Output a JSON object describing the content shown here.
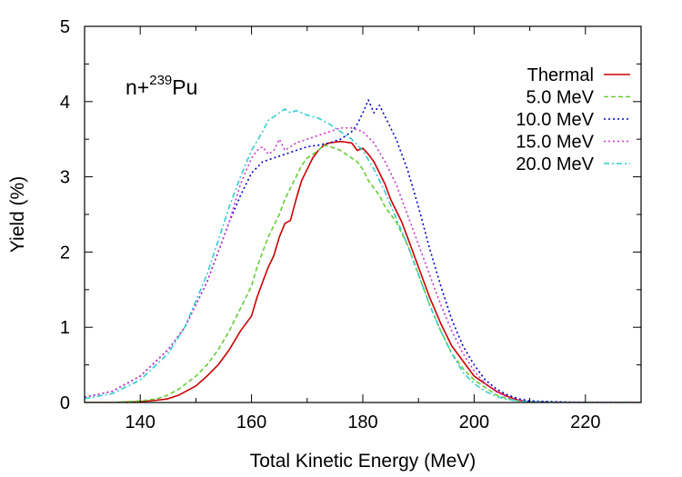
{
  "chart_data": {
    "type": "line",
    "title": "",
    "annotation": {
      "prefix": "n+",
      "superscript": "239",
      "element": "Pu"
    },
    "xlabel": "Total Kinetic Energy (MeV)",
    "ylabel": "Yield (%)",
    "xlim": [
      130,
      230
    ],
    "ylim": [
      0,
      5
    ],
    "xticks": [
      140,
      160,
      180,
      200,
      220
    ],
    "yticks": [
      0,
      1,
      2,
      3,
      4,
      5
    ],
    "grid": false,
    "legend_position": "top-right",
    "series": [
      {
        "name": "Thermal",
        "color": "#cc0000",
        "dash": "solid",
        "x": [
          130,
          135,
          140,
          143,
          145,
          147,
          150,
          152,
          154,
          156,
          158,
          160,
          161,
          162,
          163,
          164,
          165,
          166,
          167,
          168,
          169,
          170,
          171,
          172,
          173,
          174,
          175,
          176,
          177,
          178,
          179,
          180,
          181,
          182,
          183,
          184,
          185,
          186,
          187,
          188,
          190,
          192,
          194,
          196,
          198,
          200,
          202,
          204,
          206,
          208,
          210,
          215,
          220,
          230
        ],
        "y": [
          0,
          0,
          0.01,
          0.03,
          0.05,
          0.1,
          0.22,
          0.35,
          0.5,
          0.7,
          0.95,
          1.15,
          1.4,
          1.6,
          1.8,
          1.95,
          2.2,
          2.38,
          2.42,
          2.7,
          2.95,
          3.1,
          3.25,
          3.35,
          3.42,
          3.45,
          3.46,
          3.47,
          3.46,
          3.45,
          3.35,
          3.38,
          3.3,
          3.2,
          3.05,
          2.9,
          2.7,
          2.55,
          2.4,
          2.2,
          1.8,
          1.4,
          1.05,
          0.75,
          0.55,
          0.35,
          0.25,
          0.15,
          0.08,
          0.03,
          0.01,
          0,
          0,
          0
        ]
      },
      {
        "name": "5.0 MeV",
        "color": "#66cc33",
        "dash": "dashed",
        "x": [
          130,
          135,
          140,
          143,
          145,
          147,
          150,
          152,
          154,
          156,
          158,
          160,
          161,
          162,
          163,
          164,
          165,
          166,
          167,
          168,
          169,
          170,
          171,
          172,
          173,
          174,
          175,
          176,
          177,
          178,
          179,
          180,
          181,
          182,
          183,
          184,
          185,
          186,
          188,
          190,
          192,
          194,
          196,
          198,
          200,
          202,
          204,
          206,
          208,
          210,
          215,
          220,
          230
        ],
        "y": [
          0,
          0,
          0.02,
          0.05,
          0.1,
          0.18,
          0.35,
          0.5,
          0.7,
          0.95,
          1.25,
          1.55,
          1.8,
          2.0,
          2.2,
          2.35,
          2.5,
          2.7,
          2.85,
          3.0,
          3.15,
          3.25,
          3.3,
          3.35,
          3.42,
          3.4,
          3.38,
          3.35,
          3.3,
          3.25,
          3.2,
          3.1,
          2.95,
          2.85,
          2.75,
          2.6,
          2.5,
          2.4,
          2.1,
          1.7,
          1.3,
          0.95,
          0.65,
          0.45,
          0.3,
          0.2,
          0.1,
          0.05,
          0.02,
          0.01,
          0,
          0,
          0
        ]
      },
      {
        "name": "10.0 MeV",
        "color": "#0000cc",
        "dash": "dotted",
        "x": [
          130,
          135,
          140,
          145,
          148,
          150,
          152,
          154,
          156,
          158,
          160,
          162,
          164,
          166,
          168,
          170,
          172,
          174,
          176,
          178,
          179,
          180,
          181,
          182,
          183,
          184,
          185,
          186,
          187,
          188,
          190,
          192,
          194,
          196,
          198,
          200,
          202,
          204,
          206,
          208,
          210,
          215,
          220,
          230
        ],
        "y": [
          0.07,
          0.15,
          0.35,
          0.7,
          1.0,
          1.3,
          1.6,
          2.0,
          2.4,
          2.75,
          3.05,
          3.2,
          3.25,
          3.3,
          3.35,
          3.4,
          3.42,
          3.45,
          3.5,
          3.6,
          3.7,
          3.85,
          4.02,
          3.85,
          3.95,
          3.8,
          3.65,
          3.5,
          3.3,
          3.1,
          2.6,
          2.05,
          1.55,
          1.1,
          0.75,
          0.5,
          0.3,
          0.18,
          0.1,
          0.05,
          0.02,
          0.01,
          0,
          0
        ]
      },
      {
        "name": "15.0 MeV",
        "color": "#cc33cc",
        "dash": "dotted",
        "x": [
          130,
          135,
          140,
          145,
          148,
          150,
          152,
          154,
          156,
          157,
          158,
          160,
          161,
          162,
          163,
          164,
          165,
          166,
          167,
          168,
          170,
          172,
          174,
          176,
          178,
          180,
          182,
          184,
          186,
          188,
          190,
          192,
          194,
          196,
          198,
          200,
          202,
          204,
          206,
          208,
          210,
          215,
          220,
          230
        ],
        "y": [
          0.07,
          0.15,
          0.35,
          0.7,
          1.0,
          1.3,
          1.6,
          2.0,
          2.4,
          2.65,
          2.9,
          3.25,
          3.35,
          3.4,
          3.3,
          3.35,
          3.5,
          3.35,
          3.4,
          3.45,
          3.5,
          3.55,
          3.6,
          3.65,
          3.65,
          3.6,
          3.45,
          3.2,
          2.9,
          2.5,
          2.1,
          1.7,
          1.3,
          0.95,
          0.65,
          0.42,
          0.25,
          0.14,
          0.07,
          0.03,
          0.01,
          0,
          0,
          0
        ]
      },
      {
        "name": "20.0 MeV",
        "color": "#33cccc",
        "dash": "dashdot",
        "x": [
          130,
          135,
          140,
          145,
          148,
          150,
          152,
          154,
          156,
          158,
          160,
          162,
          163,
          164,
          165,
          166,
          167,
          168,
          170,
          172,
          174,
          176,
          178,
          180,
          182,
          184,
          186,
          188,
          190,
          192,
          194,
          196,
          198,
          200,
          202,
          204,
          206,
          208,
          210,
          215,
          220,
          230
        ],
        "y": [
          0.05,
          0.12,
          0.3,
          0.65,
          1.0,
          1.35,
          1.7,
          2.15,
          2.6,
          3.0,
          3.35,
          3.6,
          3.75,
          3.8,
          3.85,
          3.9,
          3.85,
          3.88,
          3.82,
          3.78,
          3.7,
          3.6,
          3.5,
          3.35,
          3.1,
          2.8,
          2.45,
          2.1,
          1.7,
          1.3,
          0.95,
          0.65,
          0.4,
          0.25,
          0.15,
          0.08,
          0.04,
          0.02,
          0.01,
          0,
          0,
          0
        ]
      }
    ]
  }
}
